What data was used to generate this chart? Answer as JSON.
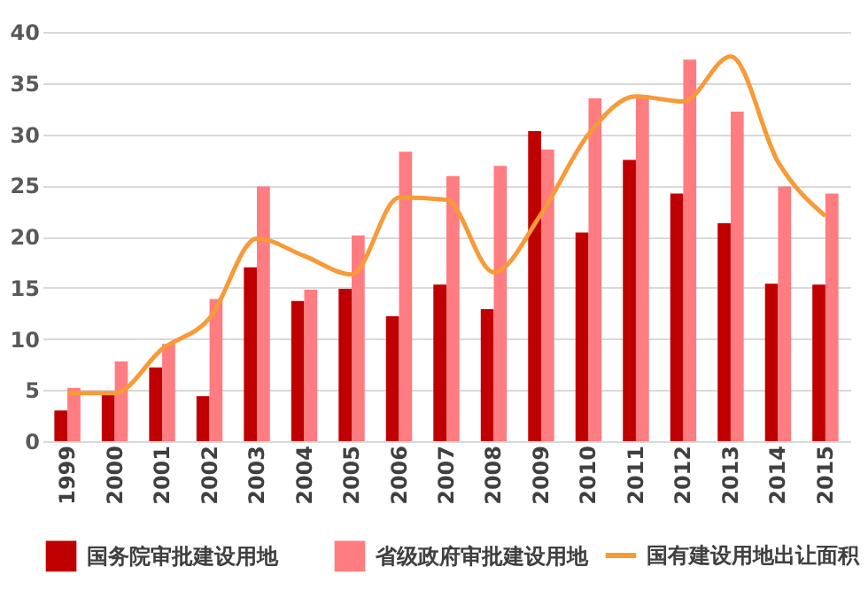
{
  "chart_data": {
    "type": "bar",
    "categories": [
      "1999",
      "2000",
      "2001",
      "2002",
      "2003",
      "2004",
      "2005",
      "2006",
      "2007",
      "2008",
      "2009",
      "2010",
      "2011",
      "2012",
      "2013",
      "2014",
      "2015"
    ],
    "series": [
      {
        "name": "国务院审批建设用地",
        "color": "#c00000",
        "values": [
          3.0,
          4.6,
          7.2,
          4.4,
          17.0,
          13.7,
          14.9,
          12.2,
          15.3,
          12.9,
          30.3,
          20.4,
          27.5,
          24.2,
          21.3,
          15.4,
          15.3
        ]
      },
      {
        "name": "省级政府审批建设用地",
        "color": "#ff7c80",
        "values": [
          5.2,
          7.8,
          9.5,
          13.9,
          24.9,
          14.8,
          20.1,
          28.3,
          25.9,
          26.9,
          28.5,
          33.5,
          33.8,
          37.3,
          32.2,
          24.9,
          24.2
        ]
      },
      {
        "name": "国有建设用地出让面积",
        "color": "#f79a38",
        "type": "line",
        "values": [
          4.7,
          4.7,
          9.0,
          12.0,
          19.8,
          18.1,
          16.3,
          23.8,
          23.6,
          16.5,
          22.2,
          30.0,
          33.7,
          33.2,
          37.6,
          27.3,
          22.0
        ]
      }
    ],
    "ylim": [
      0,
      40
    ],
    "yticks": [
      0,
      5,
      10,
      15,
      20,
      25,
      30,
      35,
      40
    ],
    "grid": "y",
    "legend": "bottom",
    "marker": "none",
    "line_style": "solid"
  }
}
